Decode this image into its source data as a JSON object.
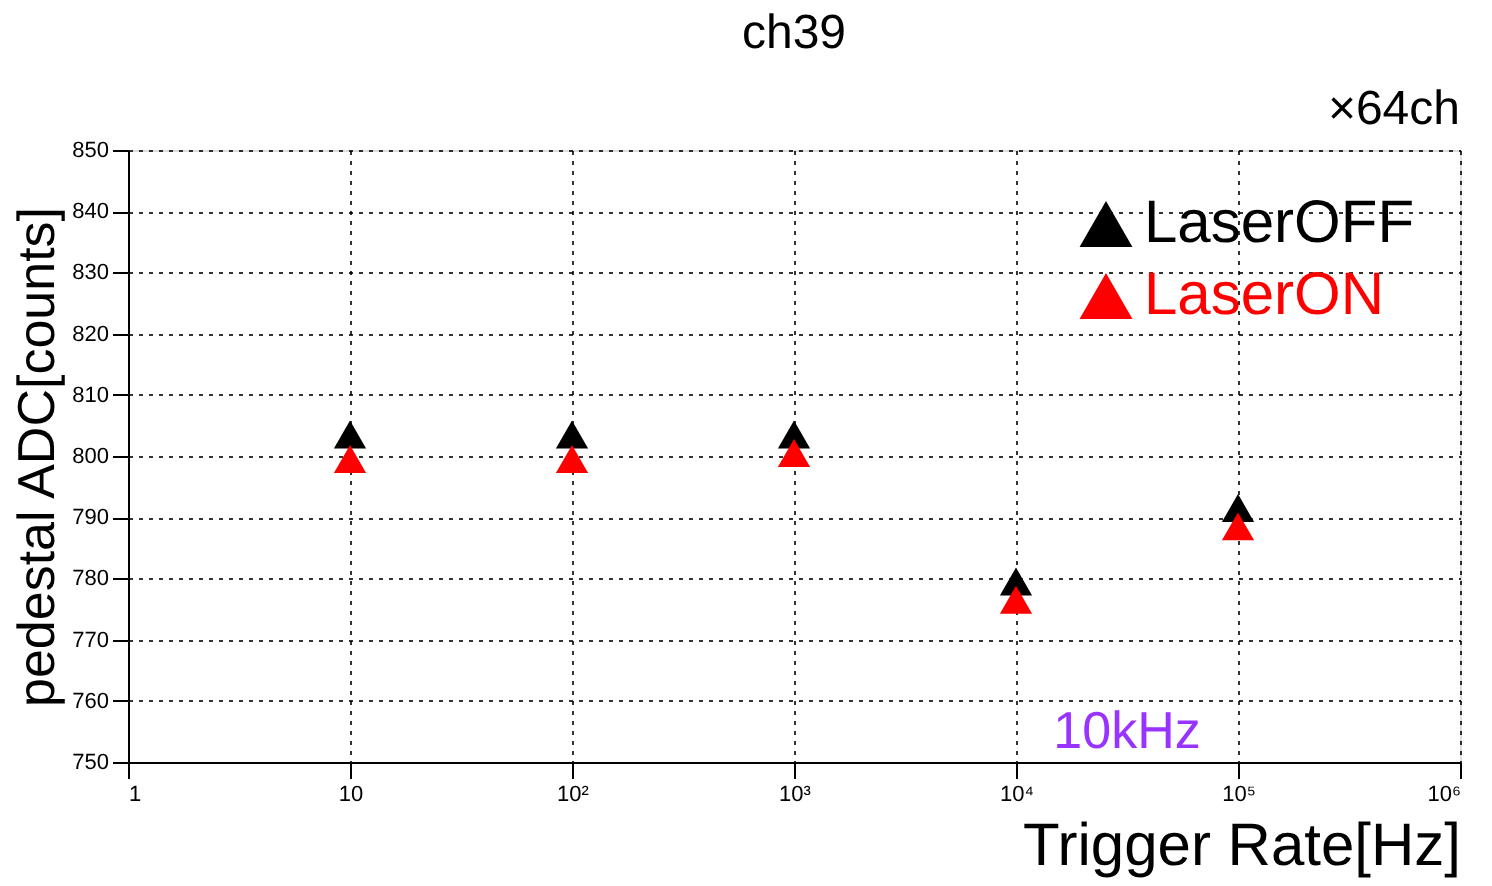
{
  "chart_data": {
    "type": "scatter",
    "title": "ch39",
    "xlabel": "Trigger Rate[Hz]",
    "ylabel": "pedestal ADC[counts]",
    "x": [
      10,
      100,
      1000,
      10000,
      100000
    ],
    "series": [
      {
        "name": "LaserOFF",
        "color": "#000000",
        "values": [
          803.5,
          803.5,
          803.5,
          779.5,
          791.5
        ]
      },
      {
        "name": "LaserON",
        "color": "#ff0000",
        "values": [
          799.5,
          799.5,
          800.5,
          776.5,
          788.5
        ]
      }
    ],
    "annotations": [
      "×64ch",
      "10kHz"
    ],
    "log": "x",
    "xlim": [
      1,
      1000000
    ],
    "xticks": [
      1,
      10,
      {
        "value": 100,
        "label": "10²"
      },
      {
        "value": 1000,
        "label": "10³"
      },
      {
        "value": 10000,
        "label": "10⁴"
      },
      {
        "value": 100000,
        "label": "10⁵"
      },
      {
        "value": 1000000,
        "label": "10⁶"
      }
    ],
    "ylim": [
      750,
      850
    ],
    "yticks": [
      750,
      760,
      770,
      780,
      790,
      800,
      810,
      820,
      830,
      840,
      850
    ],
    "grid": true,
    "legend": "top right",
    "marker": "triangle"
  }
}
